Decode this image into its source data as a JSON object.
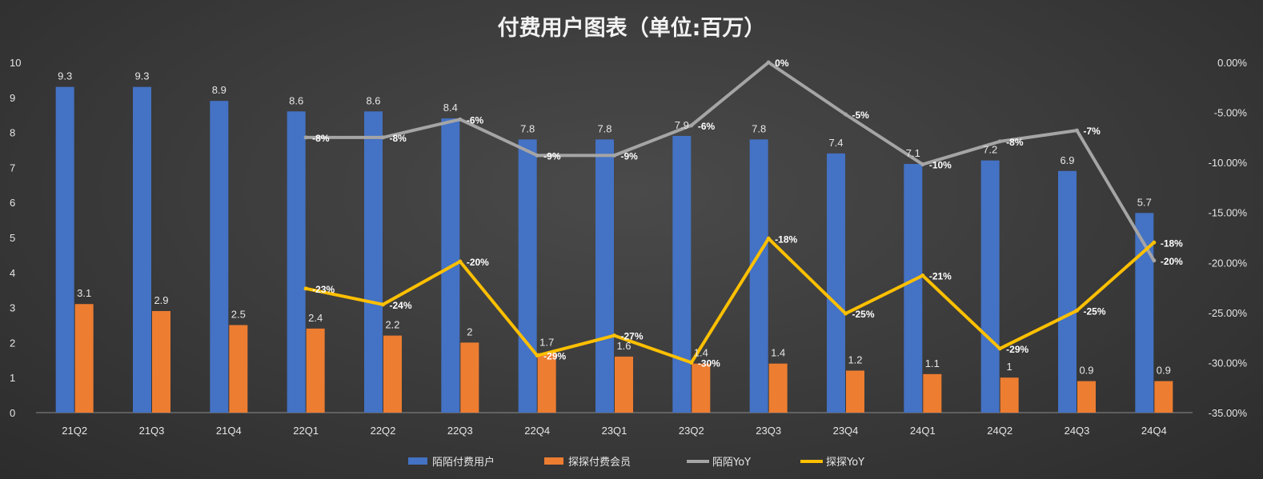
{
  "chart_data": {
    "type": "bar",
    "title": "付费用户图表（单位:百万）",
    "categories": [
      "21Q2",
      "21Q3",
      "21Q4",
      "22Q1",
      "22Q2",
      "22Q3",
      "22Q4",
      "23Q1",
      "23Q2",
      "23Q3",
      "23Q4",
      "24Q1",
      "24Q2",
      "24Q3",
      "24Q4"
    ],
    "y_left": {
      "ylim": [
        0,
        10
      ],
      "ticks": [
        "0",
        "1",
        "2",
        "3",
        "4",
        "5",
        "6",
        "7",
        "8",
        "9",
        "10"
      ]
    },
    "y_right": {
      "ylim": [
        -35,
        0
      ],
      "ticks": [
        "0.00%",
        "-5.00%",
        "-10.00%",
        "-15.00%",
        "-20.00%",
        "-25.00%",
        "-30.00%",
        "-35.00%"
      ]
    },
    "grid": false,
    "legend_position": "bottom",
    "series": [
      {
        "name": "陌陌付费用户",
        "kind": "bar",
        "axis": "left",
        "color": "#4472c4",
        "values": [
          9.3,
          9.3,
          8.9,
          8.6,
          8.6,
          8.4,
          7.8,
          7.8,
          7.9,
          7.8,
          7.4,
          7.1,
          7.2,
          6.9,
          5.7
        ],
        "labels": [
          "9.3",
          "9.3",
          "8.9",
          "8.6",
          "8.6",
          "8.4",
          "7.8",
          "7.8",
          "7.9",
          "7.8",
          "7.4",
          "7.1",
          "7.2",
          "6.9",
          "5.7"
        ]
      },
      {
        "name": "探探付费会员",
        "kind": "bar",
        "axis": "left",
        "color": "#ed7d31",
        "values": [
          3.1,
          2.9,
          2.5,
          2.4,
          2.2,
          2.0,
          1.7,
          1.6,
          1.4,
          1.4,
          1.2,
          1.1,
          1.0,
          0.9,
          0.9
        ],
        "labels": [
          "3.1",
          "2.9",
          "2.5",
          "2.4",
          "2.2",
          "2",
          "1.7",
          "1.6",
          "1.4",
          "1.4",
          "1.2",
          "1.1",
          "1",
          "0.9",
          "0.9"
        ]
      },
      {
        "name": "陌陌YoY",
        "kind": "line",
        "axis": "right",
        "color": "#a5a5a5",
        "values": [
          null,
          null,
          null,
          -7.5,
          -7.5,
          -5.7,
          -9.3,
          -9.3,
          -6.3,
          0,
          -5.2,
          -10.2,
          -7.9,
          -6.8,
          -19.8
        ],
        "labels": [
          "",
          "",
          "",
          "-8%",
          "-8%",
          "-6%",
          "-9%",
          "-9%",
          "-6%",
          "0%",
          "-5%",
          "-10%",
          "-8%",
          "-7%",
          "-20%"
        ]
      },
      {
        "name": "探探YoY",
        "kind": "line",
        "axis": "right",
        "color": "#ffc000",
        "values": [
          null,
          null,
          null,
          -22.6,
          -24.2,
          -19.9,
          -29.3,
          -27.3,
          -30.0,
          -17.6,
          -25.1,
          -21.3,
          -28.6,
          -24.8,
          -18.0
        ],
        "labels": [
          "",
          "",
          "",
          "-23%",
          "-24%",
          "-20%",
          "-29%",
          "-27%",
          "-30%",
          "-18%",
          "-25%",
          "-21%",
          "-29%",
          "-25%",
          "-18%"
        ]
      }
    ]
  }
}
